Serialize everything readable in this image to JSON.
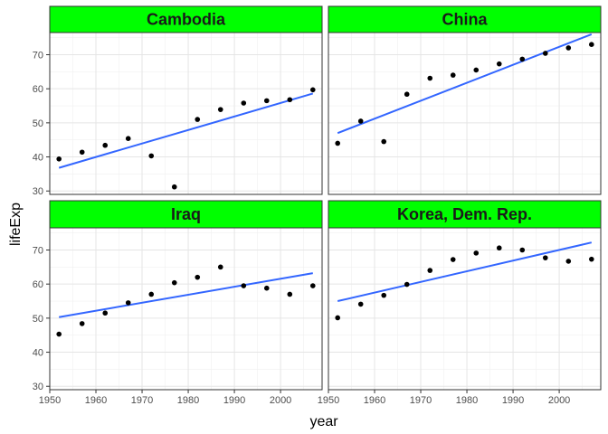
{
  "chart_data": {
    "type": "scatter",
    "facet_strip_color": "#00ff00",
    "point_color": "#000000",
    "line_color": "#3366ff",
    "xlabel": "year",
    "ylabel": "lifeExp",
    "xlim": [
      1950,
      2009
    ],
    "ylim": [
      29,
      76.5
    ],
    "x_ticks": [
      1950,
      1960,
      1970,
      1980,
      1990,
      2000
    ],
    "y_ticks": [
      30,
      40,
      50,
      60,
      70
    ],
    "x_tick_labels": [
      "1950",
      "1960",
      "1970",
      "1980",
      "1990",
      "2000"
    ],
    "y_tick_labels": [
      "30",
      "40",
      "50",
      "60",
      "70"
    ],
    "x": [
      1952,
      1957,
      1962,
      1967,
      1972,
      1977,
      1982,
      1987,
      1992,
      1997,
      2002,
      2007
    ],
    "grid": true,
    "panels": [
      {
        "title": "Cambodia",
        "y": [
          39.4,
          41.4,
          43.4,
          45.4,
          40.3,
          31.2,
          51.0,
          53.9,
          55.8,
          56.5,
          56.8,
          59.7
        ],
        "fit": [
          [
            1952,
            36.8
          ],
          [
            2007,
            58.6
          ]
        ]
      },
      {
        "title": "China",
        "y": [
          44.0,
          50.5,
          44.5,
          58.4,
          63.1,
          64.0,
          65.5,
          67.3,
          68.7,
          70.4,
          72.0,
          73.0
        ],
        "fit": [
          [
            1952,
            47.0
          ],
          [
            2007,
            76.0
          ]
        ]
      },
      {
        "title": "Iraq",
        "y": [
          45.3,
          48.4,
          51.5,
          54.5,
          57.0,
          60.4,
          62.0,
          65.0,
          59.5,
          58.8,
          57.0,
          59.5
        ],
        "fit": [
          [
            1952,
            50.3
          ],
          [
            2007,
            63.2
          ]
        ]
      },
      {
        "title": "Korea, Dem. Rep.",
        "y": [
          50.1,
          54.1,
          56.7,
          59.9,
          64.0,
          67.2,
          69.1,
          70.6,
          70.0,
          67.7,
          66.7,
          67.3
        ],
        "fit": [
          [
            1952,
            55.0
          ],
          [
            2007,
            72.2
          ]
        ]
      }
    ]
  }
}
